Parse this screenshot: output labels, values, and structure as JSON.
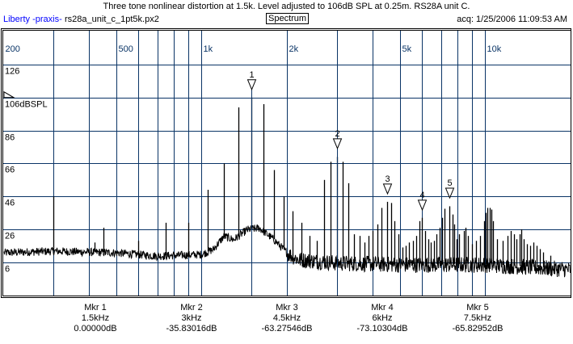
{
  "header": {
    "title": "Three tone nonlinear distortion at 1.5k. Level adjusted to 106dB SPL at 0.25m. RS28A unit C.",
    "brand": "Liberty -praxis-",
    "file": "rs28a_unit_c_1pt5k.px2",
    "mode": "Spectrum",
    "acq": "acq: 1/25/2006 11:09:53 AM"
  },
  "colors": {
    "grid": "#0a3466",
    "trace": "#000000",
    "freq_label": "#0a3466",
    "brand": "#0000ff"
  },
  "chart_data": {
    "type": "line",
    "title": "Three tone nonlinear distortion at 1.5k. Level adjusted to 106dB SPL at 0.25m. RS28A unit C.",
    "x_scale": "log",
    "xlim": [
      200,
      20000
    ],
    "ylim": [
      -14,
      146
    ],
    "reference_label": "106dBSPL",
    "x_ticks": [
      {
        "f": 200,
        "label": "200"
      },
      {
        "f": 300
      },
      {
        "f": 400
      },
      {
        "f": 500,
        "label": "500"
      },
      {
        "f": 600
      },
      {
        "f": 700
      },
      {
        "f": 800
      },
      {
        "f": 900
      },
      {
        "f": 1000,
        "label": "1k"
      },
      {
        "f": 2000,
        "label": "2k"
      },
      {
        "f": 3000
      },
      {
        "f": 4000
      },
      {
        "f": 5000,
        "label": "5k"
      },
      {
        "f": 6000
      },
      {
        "f": 7000
      },
      {
        "f": 8000
      },
      {
        "f": 9000
      },
      {
        "f": 10000,
        "label": "10k"
      }
    ],
    "y_ticks": [
      {
        "v": 126,
        "label": "126"
      },
      {
        "v": 106,
        "label": "106dBSPL"
      },
      {
        "v": 86,
        "label": "86"
      },
      {
        "v": 66,
        "label": "66"
      },
      {
        "v": 46,
        "label": "46"
      },
      {
        "v": 26,
        "label": "26"
      },
      {
        "v": 6,
        "label": "6"
      }
    ],
    "noise_floor": [
      [
        200,
        12
      ],
      [
        300,
        13
      ],
      [
        500,
        12
      ],
      [
        700,
        10
      ],
      [
        1000,
        11
      ],
      [
        1100,
        14
      ],
      [
        1200,
        22
      ],
      [
        1300,
        20
      ],
      [
        1450,
        26
      ],
      [
        1600,
        27
      ],
      [
        1800,
        20
      ],
      [
        2000,
        12
      ],
      [
        2200,
        8
      ],
      [
        3000,
        6
      ],
      [
        5000,
        5
      ],
      [
        10000,
        5
      ],
      [
        20000,
        2
      ]
    ],
    "peaks": [
      [
        300,
        46
      ],
      [
        420,
        18
      ],
      [
        450,
        27
      ],
      [
        600,
        19
      ],
      [
        750,
        30
      ],
      [
        900,
        30
      ],
      [
        1050,
        50
      ],
      [
        1200,
        66
      ],
      [
        1350,
        100
      ],
      [
        1500,
        106
      ],
      [
        1650,
        102
      ],
      [
        1800,
        62
      ],
      [
        1950,
        46
      ],
      [
        2100,
        37
      ],
      [
        2250,
        30
      ],
      [
        2400,
        22
      ],
      [
        2550,
        19
      ],
      [
        2700,
        56
      ],
      [
        2850,
        67
      ],
      [
        3000,
        70
      ],
      [
        3150,
        67
      ],
      [
        3300,
        54
      ],
      [
        3450,
        23
      ],
      [
        3600,
        22
      ],
      [
        3750,
        18
      ],
      [
        3870,
        22
      ],
      [
        4000,
        25
      ],
      [
        4160,
        29
      ],
      [
        4300,
        39
      ],
      [
        4500,
        42.7
      ],
      [
        4650,
        42
      ],
      [
        4800,
        31
      ],
      [
        4950,
        23
      ],
      [
        5100,
        15
      ],
      [
        5250,
        16
      ],
      [
        5400,
        18
      ],
      [
        5550,
        19
      ],
      [
        5700,
        22
      ],
      [
        5850,
        31
      ],
      [
        6000,
        33
      ],
      [
        6150,
        25
      ],
      [
        6300,
        20
      ],
      [
        6450,
        18
      ],
      [
        6600,
        19
      ],
      [
        6750,
        23
      ],
      [
        6900,
        27
      ],
      [
        7050,
        33
      ],
      [
        7200,
        38.5
      ],
      [
        7500,
        40
      ],
      [
        7650,
        35
      ],
      [
        7800,
        29
      ],
      [
        7950,
        20
      ],
      [
        8100,
        23
      ],
      [
        8400,
        25
      ],
      [
        8550,
        27
      ],
      [
        8700,
        22
      ],
      [
        9000,
        17
      ],
      [
        9300,
        19
      ],
      [
        9600,
        22
      ],
      [
        9900,
        31
      ],
      [
        10050,
        36
      ],
      [
        10200,
        39
      ],
      [
        10350,
        39
      ],
      [
        10500,
        38
      ],
      [
        10650,
        31
      ],
      [
        11000,
        20
      ],
      [
        11500,
        19
      ],
      [
        12000,
        22
      ],
      [
        12300,
        25
      ],
      [
        12600,
        23
      ],
      [
        12900,
        20
      ],
      [
        13200,
        23
      ],
      [
        13400,
        26
      ],
      [
        13700,
        20
      ],
      [
        14000,
        17
      ],
      [
        14400,
        16
      ],
      [
        14800,
        18
      ],
      [
        15200,
        16
      ],
      [
        15600,
        14
      ],
      [
        16000,
        12
      ],
      [
        17000,
        10
      ]
    ],
    "markers": [
      {
        "id": "1",
        "name": "Mkr 1",
        "freq": 1500,
        "freq_label": "1.5kHz",
        "rel_db": "0.00000dB",
        "level_db": 106
      },
      {
        "id": "2",
        "name": "Mkr 2",
        "freq": 3000,
        "freq_label": "3kHz",
        "rel_db": "-35.83016dB",
        "level_db": 70.2
      },
      {
        "id": "3",
        "name": "Mkr 3",
        "freq": 4500,
        "freq_label": "4.5kHz",
        "rel_db": "-63.27546dB",
        "level_db": 42.7
      },
      {
        "id": "4",
        "name": "Mkr 4",
        "freq": 6000,
        "freq_label": "6kHz",
        "rel_db": "-73.10304dB",
        "level_db": 32.9
      },
      {
        "id": "5",
        "name": "Mkr 5",
        "freq": 7500,
        "freq_label": "7.5kHz",
        "rel_db": "-65.82952dB",
        "level_db": 40.2
      }
    ]
  }
}
